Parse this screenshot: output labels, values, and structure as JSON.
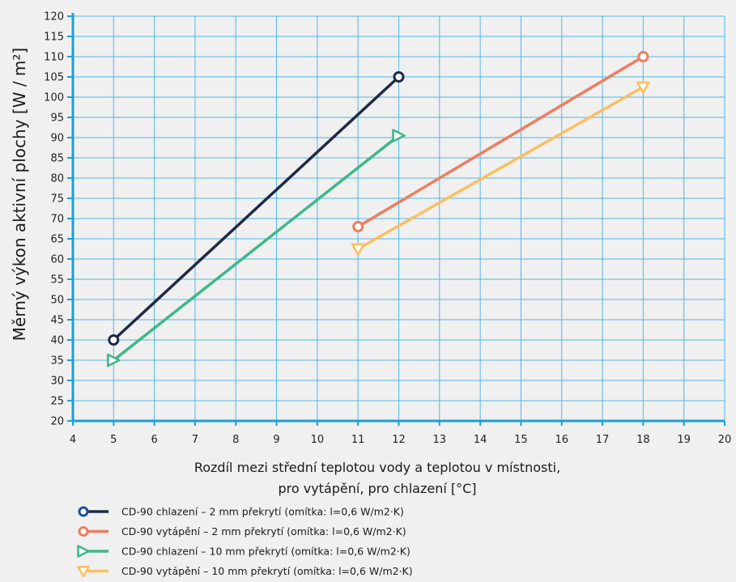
{
  "chart_data": {
    "type": "line",
    "ylabel": "Měrný výkon aktivní plochy [W / m²]",
    "xlabel_line1": "Rozdíl mezi střední teplotou vody a teplotou v místnosti,",
    "xlabel_line2": "pro vytápění, pro chlazení [°C]",
    "xlim": [
      4,
      20
    ],
    "ylim": [
      20,
      120
    ],
    "x_ticks": [
      4,
      5,
      6,
      7,
      8,
      9,
      10,
      11,
      12,
      13,
      14,
      15,
      16,
      17,
      18,
      19,
      20
    ],
    "y_ticks": [
      20,
      25,
      30,
      35,
      40,
      45,
      50,
      55,
      60,
      65,
      70,
      75,
      80,
      85,
      90,
      95,
      100,
      105,
      110,
      115,
      120
    ],
    "grid": true,
    "legend_position": "bottom",
    "series": [
      {
        "name": "CD-90 chlazení – 2 mm překrytí (omítka: l=0,6 W/m2·K)",
        "color": "#1f2a44",
        "marker": "circle",
        "x": [
          5,
          12
        ],
        "y": [
          40,
          105
        ]
      },
      {
        "name": "CD-90 vytápění – 2 mm překrytí (omítka: l=0,6 W/m2·K)",
        "color": "#ee7d5f",
        "marker": "circle",
        "x": [
          11,
          18
        ],
        "y": [
          68,
          110
        ]
      },
      {
        "name": "CD-90 chlazení – 10 mm překrytí (omítka: l=0,6 W/m2·K)",
        "color": "#3db889",
        "marker": "triangle-right",
        "x": [
          5,
          12
        ],
        "y": [
          35,
          90.5
        ]
      },
      {
        "name": "CD-90 vytápění – 10 mm překrytí (omítka: l=0,6 W/m2·K)",
        "color": "#fbbf62",
        "marker": "triangle-down",
        "x": [
          11,
          18
        ],
        "y": [
          62.5,
          102.5
        ]
      }
    ],
    "axis_color": "#1ba0d8",
    "grid_color": "#4fb7e3",
    "legend_circle_color": "#1f4e9a"
  }
}
